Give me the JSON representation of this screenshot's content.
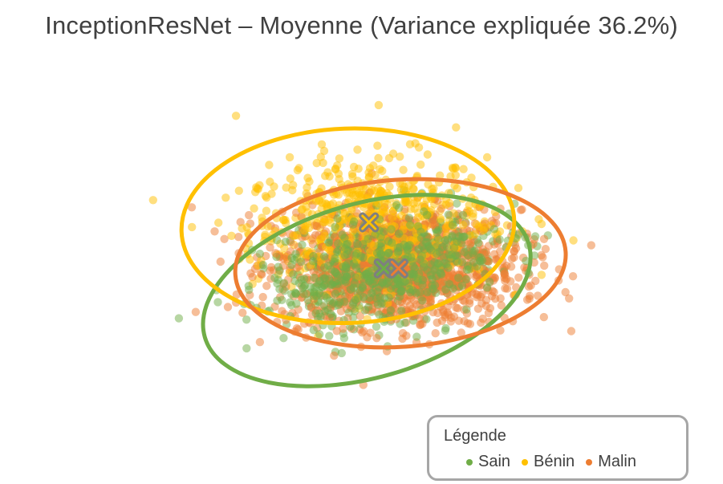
{
  "chart_data": {
    "type": "scatter",
    "title": "InceptionResNet – Moyenne (Variance expliquée 36.2%)",
    "xlabel": "",
    "ylabel": "",
    "grid": false,
    "axes_visible": false,
    "xlim": [
      -6,
      6
    ],
    "ylim": [
      -5,
      5
    ],
    "legend": {
      "title": "Légende",
      "placement": "bottom-right",
      "entries": [
        "Sain",
        "Bénin",
        "Malin"
      ]
    },
    "series": [
      {
        "name": "Sain",
        "color": "#70AD47",
        "centroid": [
          0.25,
          -0.75
        ],
        "n_points": 750,
        "spread": [
          1.35,
          0.7
        ],
        "rotation_deg": 18,
        "ellipse": {
          "center": [
            -0.15,
            -1.4
          ],
          "rx": 4.0,
          "ry": 2.55,
          "rotation_deg": 16
        }
      },
      {
        "name": "Bénin",
        "color": "#FFC000",
        "centroid": [
          -0.1,
          0.6
        ],
        "n_points": 650,
        "spread": [
          1.45,
          0.95
        ],
        "rotation_deg": 5,
        "ellipse": {
          "center": [
            -0.6,
            0.5
          ],
          "rx": 3.95,
          "ry": 2.85,
          "rotation_deg": 2
        }
      },
      {
        "name": "Malin",
        "color": "#ED7D31",
        "centroid": [
          0.6,
          -0.75
        ],
        "n_points": 1300,
        "spread": [
          1.45,
          0.85
        ],
        "rotation_deg": 0,
        "ellipse": {
          "center": [
            0.65,
            -0.6
          ],
          "rx": 3.93,
          "ry": 2.45,
          "rotation_deg": 4
        }
      }
    ]
  }
}
